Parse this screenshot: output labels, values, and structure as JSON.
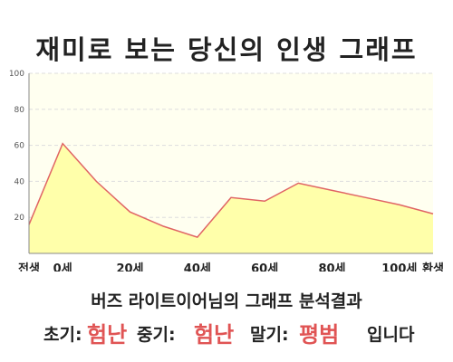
{
  "title": "재미로 보는 당신의 인생 그래프",
  "chart_data": {
    "type": "area",
    "x_ticks": [
      "전생",
      "0세",
      "20세",
      "40세",
      "60세",
      "80세",
      "100세",
      "환생"
    ],
    "x": [
      "전생",
      "0세",
      "",
      "20세",
      "",
      "40세",
      "",
      "60세",
      "",
      "80세",
      "",
      "100세",
      "환생"
    ],
    "values": [
      16,
      61,
      40,
      23,
      15,
      9,
      31,
      29,
      39,
      35,
      31,
      27,
      22
    ],
    "y_ticks": [
      20,
      40,
      60,
      80,
      100
    ],
    "ylim": [
      0,
      100
    ],
    "grid": true,
    "colors": {
      "line": "#e06464",
      "fill": "#ffffaa",
      "background": "#fffff0",
      "grid": "#dddddd",
      "axis": "#888888"
    }
  },
  "summary": {
    "text": "버즈 라이트이어님의 그래프 분석결과",
    "early_label": "초기:",
    "early_value": "험난",
    "middle_label": "중기:",
    "middle_value": "험난",
    "late_label": "말기:",
    "late_value": "평범",
    "ending": "입니다"
  }
}
